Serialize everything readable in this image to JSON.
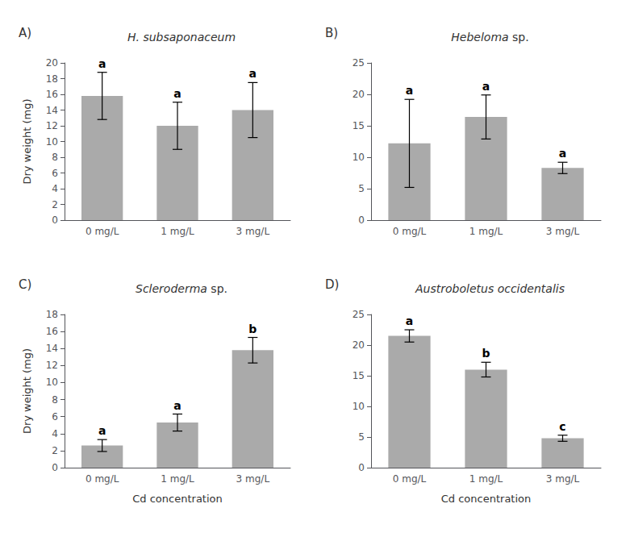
{
  "chart_data": [
    {
      "type": "bar",
      "title": "H. subsaponaceum",
      "annotations": [
        "A)"
      ],
      "categories": [
        "0 mg/L",
        "1 mg/L",
        "3 mg/L"
      ],
      "values": [
        15.8,
        12.0,
        14.0
      ],
      "errors": [
        3.0,
        3.0,
        3.5
      ],
      "letters": [
        "a",
        "a",
        "a"
      ],
      "ylim": [
        0,
        20
      ],
      "yticks": [
        0,
        2,
        4,
        6,
        8,
        10,
        12,
        14,
        16,
        18,
        20
      ],
      "ylabel": "Dry weight (mg)",
      "color": "#aaaaaa",
      "grid": false
    },
    {
      "type": "bar",
      "title": "Hebeloma sp.",
      "annotations": [
        "B)"
      ],
      "categories": [
        "0 mg/L",
        "1 mg/L",
        "3 mg/L"
      ],
      "values": [
        12.2,
        16.4,
        8.3
      ],
      "errors": [
        7.0,
        3.5,
        0.9
      ],
      "letters": [
        "a",
        "a",
        "a"
      ],
      "ylim": [
        0,
        25
      ],
      "yticks": [
        0,
        5,
        10,
        15,
        20,
        25
      ],
      "color": "#aaaaaa",
      "grid": false
    },
    {
      "type": "bar",
      "title": "Scleroderma sp.",
      "annotations": [
        "C)"
      ],
      "categories": [
        "0 mg/L",
        "1 mg/L",
        "3 mg/L"
      ],
      "values": [
        2.6,
        5.3,
        13.8
      ],
      "errors": [
        0.7,
        1.0,
        1.5
      ],
      "letters": [
        "a",
        "a",
        "b"
      ],
      "ylim": [
        0,
        18
      ],
      "yticks": [
        0,
        2,
        4,
        6,
        8,
        10,
        12,
        14,
        16,
        18
      ],
      "ylabel": "Dry weight (mg)",
      "xlabel": "Cd concentration",
      "color": "#aaaaaa",
      "grid": false
    },
    {
      "type": "bar",
      "title": "Austroboletus occidentalis",
      "annotations": [
        "D)"
      ],
      "categories": [
        "0 mg/L",
        "1 mg/L",
        "3 mg/L"
      ],
      "values": [
        21.5,
        16.0,
        4.8
      ],
      "errors": [
        1.0,
        1.2,
        0.5
      ],
      "letters": [
        "a",
        "b",
        "c"
      ],
      "ylim": [
        0,
        25
      ],
      "yticks": [
        0,
        5,
        10,
        15,
        20,
        25
      ],
      "xlabel": "Cd concentration",
      "color": "#aaaaaa",
      "grid": false
    }
  ]
}
